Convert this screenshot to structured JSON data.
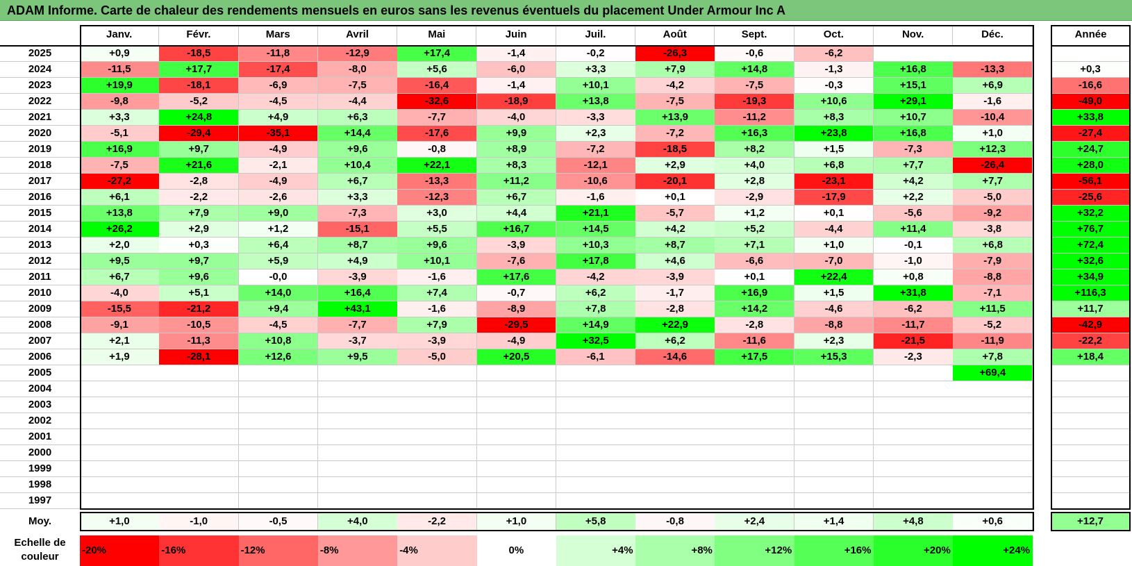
{
  "chart_data": {
    "type": "heatmap",
    "title": "ADAM Informe. Carte de chaleur des rendements mensuels en euros sans les revenus éventuels du placement Under Armour Inc A",
    "months": [
      "Janv.",
      "Févr.",
      "Mars",
      "Avril",
      "Mai",
      "Juin",
      "Juil.",
      "Août",
      "Sept.",
      "Oct.",
      "Nov.",
      "Déc."
    ],
    "year_header": "Année",
    "rows": [
      {
        "year": "2025",
        "values": [
          0.9,
          -18.5,
          -11.8,
          -12.9,
          17.4,
          -1.4,
          -0.2,
          -26.3,
          -0.6,
          -6.2,
          null,
          null
        ],
        "annual": null
      },
      {
        "year": "2024",
        "values": [
          -11.5,
          17.7,
          -17.4,
          -8.0,
          5.6,
          -6.0,
          3.3,
          7.9,
          14.8,
          -1.3,
          16.8,
          -13.3
        ],
        "annual": 0.3
      },
      {
        "year": "2023",
        "values": [
          19.9,
          -18.1,
          -6.9,
          -7.5,
          -16.4,
          -1.4,
          10.1,
          -4.2,
          -7.5,
          -0.3,
          15.1,
          6.9
        ],
        "annual": -16.6
      },
      {
        "year": "2022",
        "values": [
          -9.8,
          -5.2,
          -4.5,
          -4.4,
          -32.6,
          -18.9,
          13.8,
          -7.5,
          -19.3,
          10.6,
          29.1,
          -1.6
        ],
        "annual": -49.0
      },
      {
        "year": "2021",
        "values": [
          3.3,
          24.8,
          4.9,
          6.3,
          -7.7,
          -4.0,
          -3.3,
          13.9,
          -11.2,
          8.3,
          10.7,
          -10.4
        ],
        "annual": 33.8
      },
      {
        "year": "2020",
        "values": [
          -5.1,
          -29.4,
          -35.1,
          14.4,
          -17.6,
          9.9,
          2.3,
          -7.2,
          16.3,
          23.8,
          16.8,
          1.0
        ],
        "annual": -27.4
      },
      {
        "year": "2019",
        "values": [
          16.9,
          9.7,
          -4.9,
          9.6,
          -0.8,
          8.9,
          -7.2,
          -18.5,
          8.2,
          1.5,
          -7.3,
          12.3
        ],
        "annual": 24.7
      },
      {
        "year": "2018",
        "values": [
          -7.5,
          21.6,
          -2.1,
          10.4,
          22.1,
          8.3,
          -12.1,
          2.9,
          4.0,
          6.8,
          7.7,
          -26.4
        ],
        "annual": 28.0
      },
      {
        "year": "2017",
        "values": [
          -27.2,
          -2.8,
          -4.9,
          6.7,
          -13.3,
          11.2,
          -10.6,
          -20.1,
          2.8,
          -23.1,
          4.2,
          7.7
        ],
        "annual": -56.1
      },
      {
        "year": "2016",
        "values": [
          6.1,
          -2.2,
          -2.6,
          3.3,
          -12.3,
          6.7,
          -1.6,
          0.1,
          -2.9,
          -17.9,
          2.2,
          -5.0
        ],
        "annual": -25.6
      },
      {
        "year": "2015",
        "values": [
          13.8,
          7.9,
          9.0,
          -7.3,
          3.0,
          4.4,
          21.1,
          -5.7,
          1.2,
          0.1,
          -5.6,
          -9.2
        ],
        "annual": 32.2
      },
      {
        "year": "2014",
        "values": [
          26.2,
          2.9,
          1.2,
          -15.1,
          5.5,
          16.7,
          14.5,
          4.2,
          5.2,
          -4.4,
          11.4,
          -3.8
        ],
        "annual": 76.7
      },
      {
        "year": "2013",
        "values": [
          2.0,
          0.3,
          6.4,
          8.7,
          9.6,
          -3.9,
          10.3,
          8.7,
          7.1,
          1.0,
          -0.1,
          6.8
        ],
        "annual": 72.4
      },
      {
        "year": "2012",
        "values": [
          9.5,
          9.7,
          5.9,
          4.9,
          10.1,
          -7.6,
          17.8,
          4.6,
          -6.6,
          -7.0,
          -1.0,
          -7.9
        ],
        "annual": 32.6
      },
      {
        "year": "2011",
        "values": [
          6.7,
          9.6,
          -0.0001,
          -3.9,
          -1.6,
          17.6,
          -4.2,
          -3.9,
          0.1,
          22.4,
          0.8,
          -8.8
        ],
        "annual": 34.9
      },
      {
        "year": "2010",
        "values": [
          -4.0,
          5.1,
          14.0,
          16.4,
          7.4,
          -0.7,
          6.2,
          -1.7,
          16.9,
          1.5,
          31.8,
          -7.1
        ],
        "annual": 116.3
      },
      {
        "year": "2009",
        "values": [
          -15.5,
          -21.2,
          9.4,
          43.1,
          -1.6,
          -8.9,
          7.8,
          -2.8,
          14.2,
          -4.6,
          -6.2,
          11.5
        ],
        "annual": 11.7
      },
      {
        "year": "2008",
        "values": [
          -9.1,
          -10.5,
          -4.5,
          -7.7,
          7.9,
          -29.5,
          14.9,
          22.9,
          -2.8,
          -8.8,
          -11.7,
          -5.2
        ],
        "annual": -42.9
      },
      {
        "year": "2007",
        "values": [
          2.1,
          -11.3,
          10.8,
          -3.7,
          -3.9,
          -4.9,
          32.5,
          6.2,
          -11.6,
          2.3,
          -21.5,
          -11.9
        ],
        "annual": -22.2
      },
      {
        "year": "2006",
        "values": [
          1.9,
          -28.1,
          12.6,
          9.5,
          -5.0,
          20.5,
          -6.1,
          -14.6,
          17.5,
          15.3,
          -2.3,
          7.8
        ],
        "annual": 18.4
      },
      {
        "year": "2005",
        "values": [
          null,
          null,
          null,
          null,
          null,
          null,
          null,
          null,
          null,
          null,
          null,
          69.4
        ],
        "annual": null
      },
      {
        "year": "2004",
        "values": [
          null,
          null,
          null,
          null,
          null,
          null,
          null,
          null,
          null,
          null,
          null,
          null
        ],
        "annual": null
      },
      {
        "year": "2003",
        "values": [
          null,
          null,
          null,
          null,
          null,
          null,
          null,
          null,
          null,
          null,
          null,
          null
        ],
        "annual": null
      },
      {
        "year": "2002",
        "values": [
          null,
          null,
          null,
          null,
          null,
          null,
          null,
          null,
          null,
          null,
          null,
          null
        ],
        "annual": null
      },
      {
        "year": "2001",
        "values": [
          null,
          null,
          null,
          null,
          null,
          null,
          null,
          null,
          null,
          null,
          null,
          null
        ],
        "annual": null
      },
      {
        "year": "2000",
        "values": [
          null,
          null,
          null,
          null,
          null,
          null,
          null,
          null,
          null,
          null,
          null,
          null
        ],
        "annual": null
      },
      {
        "year": "1999",
        "values": [
          null,
          null,
          null,
          null,
          null,
          null,
          null,
          null,
          null,
          null,
          null,
          null
        ],
        "annual": null
      },
      {
        "year": "1998",
        "values": [
          null,
          null,
          null,
          null,
          null,
          null,
          null,
          null,
          null,
          null,
          null,
          null
        ],
        "annual": null
      },
      {
        "year": "1997",
        "values": [
          null,
          null,
          null,
          null,
          null,
          null,
          null,
          null,
          null,
          null,
          null,
          null
        ],
        "annual": null
      }
    ],
    "average": {
      "label": "Moy.",
      "values": [
        1.0,
        -1.0,
        -0.5,
        4.0,
        -2.2,
        1.0,
        5.8,
        -0.8,
        2.4,
        1.4,
        4.8,
        0.6
      ],
      "annual": 12.7
    },
    "color_scale": {
      "label": "Echelle de couleur",
      "steps": [
        "-20%",
        "-16%",
        "-12%",
        "-8%",
        "-4%",
        "0%",
        "+4%",
        "+8%",
        "+12%",
        "+16%",
        "+20%",
        "+24%"
      ],
      "values": [
        -20,
        -16,
        -12,
        -8,
        -4,
        0,
        4,
        8,
        12,
        16,
        20,
        24
      ]
    }
  }
}
